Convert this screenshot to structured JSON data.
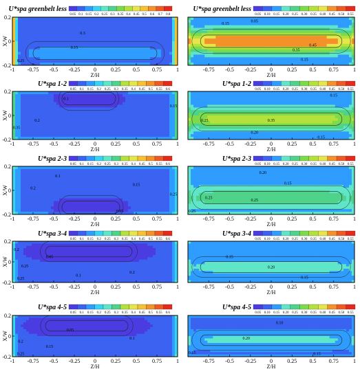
{
  "chart_data": [
    {
      "type": "heatmap",
      "title": "U*spa greenbelt less",
      "xlabel": "Z/H",
      "ylabel": "X/W",
      "xlim": [
        -1,
        1
      ],
      "ylim": [
        -0.2,
        0.2
      ],
      "x_ticks": [
        "-1",
        "-0.75",
        "-0.5",
        "-0.25",
        "0",
        "0.25",
        "0.5",
        "0.75",
        "1"
      ],
      "y_ticks": [
        "0.2",
        "0",
        "-0.2"
      ],
      "legend_levels": [
        "0.05",
        "0.1",
        "0.15",
        "0.2",
        "0.25",
        "0.3",
        "0.35",
        "0.4",
        "0.45",
        "0.5",
        "0.6",
        "0.7",
        "0.8"
      ],
      "contour_labels": [
        {
          "z": -0.15,
          "x": 0.07,
          "text": "0.3"
        },
        {
          "z": -0.25,
          "x": -0.05,
          "text": "0.15"
        },
        {
          "z": -0.9,
          "x": -0.16,
          "text": "0.25"
        }
      ],
      "field": {
        "base": 0.1,
        "core": {
          "z": [
            -0.75,
            0.75
          ],
          "x": -0.1,
          "value": 0.17
        },
        "edge_peak": 0.8
      }
    },
    {
      "type": "heatmap",
      "title": "U*spa greenbelt less",
      "xlabel": "Z/H",
      "ylabel": "",
      "xlim": [
        -1,
        1
      ],
      "ylim": [
        -0.2,
        0.2
      ],
      "x_ticks": [
        "-0.75",
        "-0.5",
        "-0.25",
        "0",
        "0.25",
        "0.5",
        "0.75",
        "1"
      ],
      "y_ticks": [],
      "legend_levels": [
        "0.05",
        "0.10",
        "0.15",
        "0.20",
        "0.25",
        "0.30",
        "0.35",
        "0.40",
        "0.45",
        "0.50",
        "0.55"
      ],
      "contour_labels": [
        {
          "z": -0.55,
          "x": 0.15,
          "text": "0.15"
        },
        {
          "z": -0.2,
          "x": 0.17,
          "text": "0.05"
        },
        {
          "z": 0.3,
          "x": -0.07,
          "text": "0.35"
        },
        {
          "z": 0.5,
          "x": -0.03,
          "text": "0.45"
        },
        {
          "z": 0.4,
          "x": -0.15,
          "text": "0.15"
        }
      ],
      "field": {
        "base": 0.15,
        "core": {
          "z": [
            -0.85,
            0.85
          ],
          "x": 0.0,
          "value": 0.5
        },
        "edge_peak": 0.3
      }
    },
    {
      "type": "heatmap",
      "title": "U*spa 1-2",
      "xlabel": "Z/H",
      "ylabel": "X/W",
      "xlim": [
        -1,
        1
      ],
      "ylim": [
        -0.2,
        0.2
      ],
      "x_ticks": [
        "-1",
        "-0.75",
        "-0.5",
        "-0.25",
        "0",
        "0.25",
        "0.5",
        "0.75",
        "1"
      ],
      "y_ticks": [
        "0.2",
        "0",
        "-0.2"
      ],
      "legend_levels": [
        "0.05",
        "0.1",
        "0.15",
        "0.2",
        "0.25",
        "0.3",
        "0.35",
        "0.4",
        "0.45",
        "0.5",
        "0.55",
        "0.6"
      ],
      "contour_labels": [
        {
          "z": -0.7,
          "x": -0.04,
          "text": "0.2"
        },
        {
          "z": -0.95,
          "x": -0.1,
          "text": "0.35"
        },
        {
          "z": -0.35,
          "x": 0.14,
          "text": "0.1"
        },
        {
          "z": 0.95,
          "x": 0.08,
          "text": "0.15"
        }
      ],
      "field": {
        "base": 0.15,
        "core": {
          "z": [
            -0.4,
            0.25
          ],
          "x": 0.14,
          "value": 0.05
        },
        "edge_peak": 0.4
      }
    },
    {
      "type": "heatmap",
      "title": "U*spa 1-2",
      "xlabel": "Z/H",
      "ylabel": "",
      "xlim": [
        -1,
        1
      ],
      "ylim": [
        -0.2,
        0.2
      ],
      "x_ticks": [
        "-0.75",
        "-0.5",
        "-0.25",
        "0",
        "0.25",
        "0.5",
        "0.75",
        "1"
      ],
      "y_ticks": [],
      "legend_levels": [
        "0.05",
        "0.10",
        "0.15",
        "0.20",
        "0.25",
        "0.30",
        "0.35",
        "0.40",
        "0.45",
        "0.50",
        "0.55"
      ],
      "contour_labels": [
        {
          "z": 0.75,
          "x": 0.17,
          "text": "0.15"
        },
        {
          "z": -0.8,
          "x": -0.04,
          "text": "0.25"
        },
        {
          "z": 0.0,
          "x": -0.04,
          "text": "0.35"
        },
        {
          "z": -0.2,
          "x": -0.14,
          "text": "0.20"
        },
        {
          "z": 0.6,
          "x": -0.18,
          "text": "0.15"
        }
      ],
      "field": {
        "base": 0.15,
        "core": {
          "z": [
            -0.85,
            0.85
          ],
          "x": -0.03,
          "value": 0.38
        },
        "edge_peak": 0.25
      }
    },
    {
      "type": "heatmap",
      "title": "U*spa 2-3",
      "xlabel": "Z/H",
      "ylabel": "X/W",
      "xlim": [
        -1,
        1
      ],
      "ylim": [
        -0.2,
        0.2
      ],
      "x_ticks": [
        "-1",
        "-0.75",
        "-0.5",
        "-0.25",
        "0",
        "0.25",
        "0.5",
        "0.75",
        "1"
      ],
      "y_ticks": [
        "0.2",
        "0",
        "-0.2"
      ],
      "legend_levels": [
        "0.05",
        "0.1",
        "0.15",
        "0.2",
        "0.25",
        "0.3",
        "0.35",
        "0.4",
        "0.45",
        "0.5",
        "0.55",
        "0.6"
      ],
      "contour_labels": [
        {
          "z": -0.45,
          "x": 0.12,
          "text": "0.1"
        },
        {
          "z": -0.75,
          "x": 0.02,
          "text": "0.2"
        },
        {
          "z": 0.5,
          "x": 0.05,
          "text": "0.15"
        },
        {
          "z": 0.95,
          "x": -0.03,
          "text": "0.25"
        },
        {
          "z": 0.3,
          "x": -0.17,
          "text": "0.05"
        }
      ],
      "field": {
        "base": 0.15,
        "core": {
          "z": [
            -0.4,
            0.3
          ],
          "x": -0.14,
          "value": 0.05
        },
        "edge_peak": 0.3
      }
    },
    {
      "type": "heatmap",
      "title": "U*spa 2-3",
      "xlabel": "Z/H",
      "ylabel": "",
      "xlim": [
        -1,
        1
      ],
      "ylim": [
        -0.2,
        0.2
      ],
      "x_ticks": [
        "-0.75",
        "-0.5",
        "-0.25",
        "0",
        "0.25",
        "0.5",
        "0.75",
        "1"
      ],
      "y_ticks": [],
      "legend_levels": [
        "0.05",
        "0.10",
        "0.15",
        "0.20",
        "0.25",
        "0.30",
        "0.35",
        "0.40",
        "0.45",
        "0.50",
        "0.55"
      ],
      "contour_labels": [
        {
          "z": -0.1,
          "x": 0.15,
          "text": "0.20"
        },
        {
          "z": 0.2,
          "x": 0.06,
          "text": "0.15"
        },
        {
          "z": -0.75,
          "x": -0.06,
          "text": "0.25"
        },
        {
          "z": -0.2,
          "x": -0.08,
          "text": "0.25"
        },
        {
          "z": -0.95,
          "x": -0.17,
          "text": "0.25"
        }
      ],
      "field": {
        "base": 0.17,
        "core": {
          "z": [
            -0.85,
            0.85
          ],
          "x": -0.06,
          "value": 0.28
        },
        "edge_peak": 0.22
      }
    },
    {
      "type": "heatmap",
      "title": "U*spa 3-4",
      "xlabel": "Z/H",
      "ylabel": "X/W",
      "xlim": [
        -1,
        1
      ],
      "ylim": [
        -0.2,
        0.2
      ],
      "x_ticks": [
        "-1",
        "-0.75",
        "-0.5",
        "-0.25",
        "0",
        "0.25",
        "0.5",
        "0.75",
        "1"
      ],
      "y_ticks": [
        "0.2",
        "0",
        "-0.2"
      ],
      "legend_levels": [
        "0.05",
        "0.1",
        "0.15",
        "0.2",
        "0.25",
        "0.3",
        "0.35",
        "0.4",
        "0.45",
        "0.5",
        "0.55",
        "0.6"
      ],
      "contour_labels": [
        {
          "z": -0.95,
          "x": 0.12,
          "text": "0.2"
        },
        {
          "z": -0.55,
          "x": 0.05,
          "text": "0.05"
        },
        {
          "z": -0.85,
          "x": -0.04,
          "text": "0.25"
        },
        {
          "z": -0.2,
          "x": -0.13,
          "text": "0.1"
        },
        {
          "z": 0.45,
          "x": -0.1,
          "text": "0.2"
        },
        {
          "z": -0.9,
          "x": -0.16,
          "text": "0.25"
        }
      ],
      "field": {
        "base": 0.12,
        "core": {
          "z": [
            -0.6,
            0.45
          ],
          "x": 0.1,
          "value": 0.04
        },
        "edge_peak": 0.3
      }
    },
    {
      "type": "heatmap",
      "title": "U*spa 3-4",
      "xlabel": "Z/H",
      "ylabel": "",
      "xlim": [
        -1,
        1
      ],
      "ylim": [
        -0.2,
        0.2
      ],
      "x_ticks": [
        "-0.75",
        "-0.5",
        "-0.25",
        "0",
        "0.25",
        "0.5",
        "0.75",
        "1"
      ],
      "y_ticks": [],
      "legend_levels": [
        "0.05",
        "0.10",
        "0.15",
        "0.20",
        "0.25",
        "0.30",
        "0.35",
        "0.40",
        "0.45",
        "0.50",
        "0.55"
      ],
      "contour_labels": [
        {
          "z": -0.5,
          "x": 0.05,
          "text": "0.15"
        },
        {
          "z": 0.0,
          "x": -0.05,
          "text": "0.20"
        },
        {
          "z": 0.4,
          "x": -0.15,
          "text": "0.15"
        }
      ],
      "field": {
        "base": 0.15,
        "core": {
          "z": [
            -0.85,
            0.85
          ],
          "x": -0.05,
          "value": 0.22
        },
        "edge_peak": 0.2
      }
    },
    {
      "type": "heatmap",
      "title": "U*spa 4-5",
      "xlabel": "Z/H",
      "ylabel": "X/W",
      "xlim": [
        -1,
        1
      ],
      "ylim": [
        -0.2,
        0.2
      ],
      "x_ticks": [
        "-1",
        "-0.75",
        "-0.5",
        "-0.25",
        "0",
        "0.25",
        "0.5",
        "0.75",
        "1"
      ],
      "y_ticks": [
        "0.2",
        "0",
        "-0.2"
      ],
      "legend_levels": [
        "0.05",
        "0.1",
        "0.15",
        "0.2",
        "0.25",
        "0.3",
        "0.35",
        "0.4",
        "0.45",
        "0.5",
        "0.55",
        "0.6"
      ],
      "contour_labels": [
        {
          "z": -0.3,
          "x": 0.06,
          "text": "0.05"
        },
        {
          "z": 0.45,
          "x": -0.02,
          "text": "0.1"
        },
        {
          "z": -0.9,
          "x": -0.05,
          "text": "0.2"
        },
        {
          "z": -0.55,
          "x": -0.1,
          "text": "0.15"
        },
        {
          "z": -0.9,
          "x": -0.17,
          "text": "0.25"
        }
      ],
      "field": {
        "base": 0.12,
        "core": {
          "z": [
            -0.6,
            0.4
          ],
          "x": 0.1,
          "value": 0.03
        },
        "edge_peak": 0.3
      }
    },
    {
      "type": "heatmap",
      "title": "U*spa 4-5",
      "xlabel": "Z/H",
      "ylabel": "",
      "xlim": [
        -1,
        1
      ],
      "ylim": [
        -0.2,
        0.2
      ],
      "x_ticks": [
        "-0.75",
        "-0.5",
        "-0.25",
        "0",
        "0.25",
        "0.5",
        "0.75",
        "1"
      ],
      "y_ticks": [],
      "legend_levels": [
        "0.05",
        "0.10",
        "0.15",
        "0.20",
        "0.25",
        "0.30",
        "0.35",
        "0.40",
        "0.45",
        "0.50",
        "0.55"
      ],
      "contour_labels": [
        {
          "z": 0.1,
          "x": 0.13,
          "text": "0.10"
        },
        {
          "z": -0.3,
          "x": -0.02,
          "text": "0.20"
        },
        {
          "z": -0.95,
          "x": -0.16,
          "text": "0.15"
        },
        {
          "z": 0.55,
          "x": -0.17,
          "text": "0.15"
        }
      ],
      "field": {
        "base": 0.13,
        "core": {
          "z": [
            -0.85,
            0.85
          ],
          "x": -0.04,
          "value": 0.21
        },
        "edge_peak": 0.18
      }
    }
  ]
}
